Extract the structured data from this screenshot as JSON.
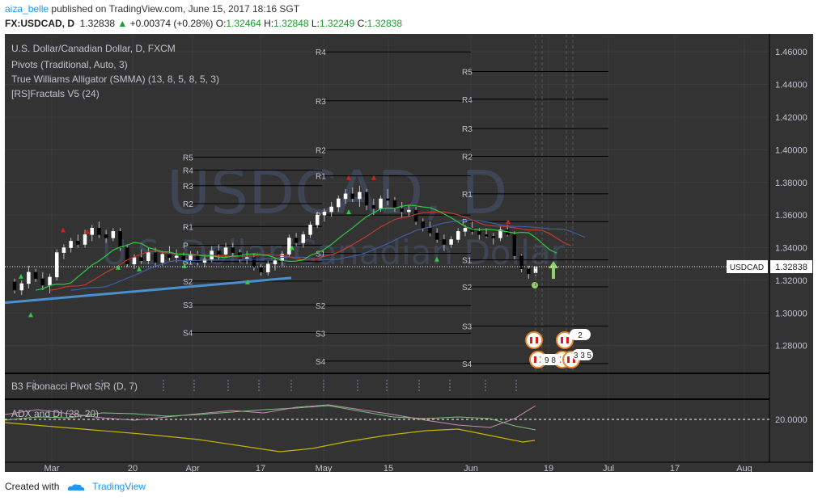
{
  "header": {
    "author": "aiza_belle",
    "published_text": "published on TradingView.com, June 15, 2017 18:16 SGT",
    "symbol": "FX:USDCAD, D",
    "price": "1.32838",
    "change": "+0.00374 (+0.28%)",
    "o_label": "O:",
    "o": "1.32464",
    "h_label": "H:",
    "h": "1.32848",
    "l_label": "L:",
    "l": "1.32249",
    "c_label": "C:",
    "c": "1.32838"
  },
  "legend": {
    "title": "U.S. Dollar/Canadian Dollar, D, FXCM",
    "studies": [
      "Pivots (Traditional, Auto, 3)",
      "True Williams Alligator (SMMA) (13, 8, 5, 8, 5, 3)",
      "[RS]Fractals V5 (24)"
    ]
  },
  "watermark": {
    "big": "USDCAD, D",
    "small": "U.S. Dollar/Canadian Dollar"
  },
  "price_label": "USDCAD",
  "price_tag": "1.32838",
  "pane2_label": "B3 Fibonacci Pivot S/R (D, 7)",
  "pane3_label": "ADX and DI (28, 20)",
  "adx_level": "20.0000",
  "event_badges": [
    "9 8",
    "2",
    "3 3 5"
  ],
  "colors": {
    "bg": "#333333",
    "grid": "#3e3e3e",
    "text": "#c6c0cf",
    "up": "#ffffff",
    "down": "#000000",
    "jaw": "#c0392b",
    "teeth": "#3b5fa8",
    "lips": "#2ecc40",
    "trend": "#4a8fd0",
    "adx": "#c8b400",
    "di_plus": "#7cbf7c",
    "di_minus": "#c08fb5"
  },
  "chart_data": {
    "type": "candlestick",
    "title": "U.S. Dollar/Canadian Dollar, D, FXCM",
    "y_ticks": [
      "1.46000",
      "1.44000",
      "1.42000",
      "1.40000",
      "1.38000",
      "1.36000",
      "1.34000",
      "1.32000",
      "1.30000",
      "1.28000"
    ],
    "ylim": [
      1.264,
      1.471
    ],
    "x_ticks": [
      "Mar",
      "20",
      "Apr",
      "17",
      "May",
      "15",
      "Jun",
      "19",
      "Jul",
      "17",
      "Aug"
    ],
    "pivot_levels": [
      {
        "period": "Mar",
        "labels": {
          "R5": 1.3955,
          "R4": 1.3875,
          "R3": 1.378,
          "R2": 1.367,
          "R1": 1.353,
          "P": 1.3415,
          "S1": 1.3315,
          "S2": 1.3195,
          "S3": 1.305,
          "S4": 1.288
        }
      },
      {
        "period": "Apr",
        "labels": {
          "R4": 1.46,
          "R3": 1.43,
          "R2": 1.4,
          "R1": 1.384,
          "P": 1.36,
          "S1": 1.3365,
          "S2": 1.3045,
          "S3": 1.2875,
          "S4": 1.2705
        }
      },
      {
        "period": "Jun",
        "labels": {
          "R5": 1.448,
          "R4": 1.431,
          "R3": 1.413,
          "R2": 1.396,
          "R1": 1.373,
          "P": 1.356,
          "S1": 1.3325,
          "S2": 1.316,
          "S3": 1.292,
          "S4": 1.269
        }
      }
    ],
    "candles": [
      [
        1.319,
        1.321,
        1.312,
        1.314
      ],
      [
        1.314,
        1.32,
        1.311,
        1.318
      ],
      [
        1.318,
        1.329,
        1.315,
        1.325
      ],
      [
        1.325,
        1.327,
        1.319,
        1.321
      ],
      [
        1.321,
        1.325,
        1.314,
        1.317
      ],
      [
        1.317,
        1.324,
        1.312,
        1.322
      ],
      [
        1.322,
        1.339,
        1.32,
        1.337
      ],
      [
        1.337,
        1.342,
        1.333,
        1.34
      ],
      [
        1.34,
        1.346,
        1.337,
        1.344
      ],
      [
        1.344,
        1.348,
        1.34,
        1.342
      ],
      [
        1.342,
        1.351,
        1.34,
        1.348
      ],
      [
        1.348,
        1.354,
        1.344,
        1.352
      ],
      [
        1.352,
        1.356,
        1.346,
        1.348
      ],
      [
        1.348,
        1.351,
        1.343,
        1.346
      ],
      [
        1.346,
        1.352,
        1.344,
        1.35
      ],
      [
        1.35,
        1.352,
        1.338,
        1.34
      ],
      [
        1.34,
        1.342,
        1.328,
        1.33
      ],
      [
        1.33,
        1.336,
        1.327,
        1.334
      ],
      [
        1.334,
        1.339,
        1.33,
        1.332
      ],
      [
        1.332,
        1.34,
        1.33,
        1.337
      ],
      [
        1.337,
        1.34,
        1.329,
        1.331
      ],
      [
        1.331,
        1.338,
        1.329,
        1.336
      ],
      [
        1.336,
        1.341,
        1.332,
        1.334
      ],
      [
        1.334,
        1.339,
        1.331,
        1.335
      ],
      [
        1.335,
        1.337,
        1.33,
        1.332
      ],
      [
        1.332,
        1.338,
        1.33,
        1.336
      ],
      [
        1.336,
        1.338,
        1.329,
        1.331
      ],
      [
        1.331,
        1.336,
        1.328,
        1.333
      ],
      [
        1.333,
        1.341,
        1.331,
        1.338
      ],
      [
        1.338,
        1.342,
        1.333,
        1.336
      ],
      [
        1.336,
        1.343,
        1.334,
        1.34
      ],
      [
        1.34,
        1.343,
        1.335,
        1.337
      ],
      [
        1.337,
        1.339,
        1.331,
        1.333
      ],
      [
        1.333,
        1.338,
        1.33,
        1.334
      ],
      [
        1.334,
        1.336,
        1.326,
        1.328
      ],
      [
        1.328,
        1.33,
        1.323,
        1.325
      ],
      [
        1.325,
        1.332,
        1.323,
        1.33
      ],
      [
        1.33,
        1.334,
        1.326,
        1.332
      ],
      [
        1.332,
        1.338,
        1.329,
        1.336
      ],
      [
        1.336,
        1.348,
        1.334,
        1.346
      ],
      [
        1.346,
        1.349,
        1.341,
        1.343
      ],
      [
        1.343,
        1.35,
        1.34,
        1.348
      ],
      [
        1.348,
        1.356,
        1.346,
        1.354
      ],
      [
        1.354,
        1.362,
        1.352,
        1.36
      ],
      [
        1.36,
        1.364,
        1.356,
        1.362
      ],
      [
        1.362,
        1.368,
        1.359,
        1.365
      ],
      [
        1.365,
        1.372,
        1.362,
        1.37
      ],
      [
        1.37,
        1.376,
        1.367,
        1.373
      ],
      [
        1.373,
        1.377,
        1.368,
        1.37
      ],
      [
        1.37,
        1.378,
        1.365,
        1.374
      ],
      [
        1.374,
        1.376,
        1.363,
        1.366
      ],
      [
        1.366,
        1.37,
        1.36,
        1.364
      ],
      [
        1.364,
        1.372,
        1.362,
        1.37
      ],
      [
        1.37,
        1.376,
        1.366,
        1.369
      ],
      [
        1.369,
        1.371,
        1.362,
        1.364
      ],
      [
        1.364,
        1.368,
        1.358,
        1.362
      ],
      [
        1.362,
        1.366,
        1.359,
        1.363
      ],
      [
        1.363,
        1.365,
        1.354,
        1.356
      ],
      [
        1.356,
        1.358,
        1.35,
        1.352
      ],
      [
        1.352,
        1.356,
        1.347,
        1.349
      ],
      [
        1.349,
        1.352,
        1.343,
        1.345
      ],
      [
        1.345,
        1.348,
        1.338,
        1.342
      ],
      [
        1.342,
        1.347,
        1.34,
        1.345
      ],
      [
        1.345,
        1.352,
        1.343,
        1.35
      ],
      [
        1.35,
        1.354,
        1.347,
        1.352
      ],
      [
        1.352,
        1.356,
        1.348,
        1.35
      ],
      [
        1.35,
        1.352,
        1.345,
        1.348
      ],
      [
        1.348,
        1.352,
        1.346,
        1.347
      ],
      [
        1.347,
        1.349,
        1.342,
        1.346
      ],
      [
        1.346,
        1.353,
        1.344,
        1.351
      ],
      [
        1.351,
        1.354,
        1.347,
        1.348
      ],
      [
        1.348,
        1.35,
        1.333,
        1.335
      ],
      [
        1.335,
        1.336,
        1.325,
        1.327
      ],
      [
        1.327,
        1.329,
        1.321,
        1.324
      ],
      [
        1.3246,
        1.3285,
        1.3225,
        1.3284
      ]
    ],
    "current_price": 1.32838
  }
}
